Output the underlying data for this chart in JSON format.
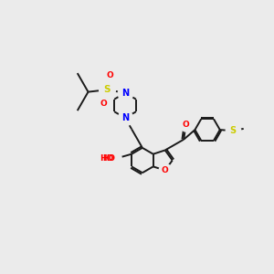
{
  "background_color": "#ebebeb",
  "bond_color": "#1a1a1a",
  "atom_colors": {
    "N": "#0000ff",
    "O": "#ff0000",
    "S": "#cccc00",
    "H": "#888888"
  },
  "figsize": [
    3.0,
    3.0
  ],
  "dpi": 100
}
